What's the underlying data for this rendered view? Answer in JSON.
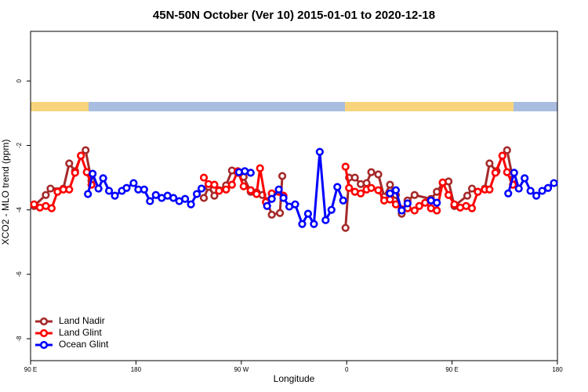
{
  "chart_data": {
    "type": "line",
    "title": "45N-50N October (Ver 10)   2015-01-01 to 2020-12-18",
    "xlabel": "Longitude",
    "ylabel": "XCO2 - MLO trend (ppm)",
    "xlim": [
      90,
      540
    ],
    "ylim": [
      -8.68,
      1.54
    ],
    "xticks": [
      {
        "value": 90,
        "label": "90 E"
      },
      180,
      {
        "value": 270,
        "label": "90 W"
      },
      {
        "value": 360,
        "label": "0"
      },
      {
        "value": 450,
        "label": "90 E"
      },
      {
        "value": 540,
        "label": "180"
      }
    ],
    "yticks": [
      0,
      -2,
      -4,
      -6,
      -8
    ],
    "legend": "lower left",
    "series": [
      {
        "name": "Land Nadir",
        "color": "#a52a2a",
        "x": [
          93,
          103,
          107,
          118,
          123,
          128,
          133,
          137,
          142,
          null,
          238,
          242,
          247,
          251,
          257,
          262,
          267,
          272,
          278,
          283,
          288,
          292,
          296,
          303,
          305,
          null,
          359,
          362,
          367,
          372,
          377,
          381,
          387,
          392,
          397,
          402,
          407,
          412,
          418,
          432,
          437,
          442,
          447,
          452,
          463,
          467,
          472,
          478,
          482,
          488,
          493,
          497,
          502
        ],
        "values": [
          -3.88,
          -3.54,
          -3.34,
          -3.34,
          -2.56,
          -2.8,
          -2.32,
          -2.15,
          -3.1,
          null,
          -3.63,
          -3.29,
          -3.56,
          -3.39,
          -3.24,
          -2.78,
          -2.85,
          -2.98,
          -3.44,
          -3.46,
          -3.54,
          -3.73,
          -4.15,
          -4.1,
          -2.95,
          null,
          -4.56,
          -3.0,
          -3.0,
          -3.2,
          -3.17,
          -2.83,
          -2.9,
          -3.59,
          -3.22,
          -3.54,
          -4.12,
          -3.71,
          -3.54,
          -3.66,
          -3.44,
          -3.17,
          -3.12,
          -3.88,
          -3.56,
          -3.34,
          -3.44,
          -3.34,
          -2.56,
          -2.8,
          -2.32,
          -2.15,
          -3.05
        ]
      },
      {
        "name": "Land Glint",
        "color": "#ff0000",
        "x": [
          93,
          98,
          103,
          108,
          113,
          118,
          123,
          128,
          133,
          138,
          142,
          null,
          238,
          242,
          247,
          251,
          257,
          262,
          267,
          272,
          278,
          283,
          286,
          291,
          296,
          302,
          306,
          null,
          359,
          362,
          367,
          372,
          377,
          381,
          387,
          392,
          397,
          402,
          407,
          412,
          418,
          422,
          427,
          432,
          437,
          442,
          447,
          452,
          457,
          462,
          467,
          472,
          478,
          482,
          487,
          493,
          497,
          502
        ],
        "values": [
          -3.83,
          -3.93,
          -3.88,
          -3.95,
          -3.44,
          -3.37,
          -3.37,
          -2.85,
          -2.32,
          -2.83,
          -3.22,
          null,
          -3.0,
          -3.2,
          -3.22,
          -3.41,
          -3.37,
          -3.22,
          -2.8,
          -3.27,
          -3.39,
          -3.51,
          -2.71,
          -3.76,
          -3.49,
          -3.44,
          -3.56,
          null,
          -2.66,
          -3.32,
          -3.44,
          -3.49,
          -3.37,
          -3.32,
          -3.39,
          -3.71,
          -3.68,
          -3.83,
          -3.98,
          -3.95,
          -4.02,
          -3.88,
          -3.78,
          -3.95,
          -4.02,
          -3.15,
          -3.54,
          -3.83,
          -3.93,
          -3.88,
          -3.95,
          -3.44,
          -3.37,
          -3.37,
          -2.85,
          -2.32,
          -2.83,
          -3.22
        ]
      },
      {
        "name": "Ocean Glint",
        "color": "#0000ff",
        "x": [
          139,
          143,
          148,
          152,
          157,
          162,
          168,
          172,
          178,
          182,
          187,
          192,
          197,
          202,
          207,
          212,
          217,
          222,
          227,
          232,
          236,
          null,
          268,
          273,
          278,
          null,
          292,
          296,
          302,
          306,
          311,
          316,
          322,
          327,
          332,
          337,
          342,
          347,
          352,
          357,
          null,
          397,
          402,
          407,
          412,
          null,
          432,
          437,
          null,
          498,
          503,
          507,
          512,
          517,
          522,
          527,
          532,
          537
        ],
        "values": [
          -3.51,
          -2.88,
          -3.34,
          -3.02,
          -3.41,
          -3.56,
          -3.41,
          -3.32,
          -3.17,
          -3.37,
          -3.37,
          -3.73,
          -3.54,
          -3.63,
          -3.56,
          -3.63,
          -3.73,
          -3.66,
          -3.83,
          -3.51,
          -3.34,
          null,
          -2.83,
          -2.8,
          -2.85,
          null,
          -3.88,
          -3.66,
          -3.37,
          -3.63,
          -3.9,
          -3.83,
          -4.44,
          -4.12,
          -4.44,
          -2.2,
          -4.32,
          -4.0,
          -3.29,
          -3.71,
          null,
          -3.49,
          -3.39,
          -4.02,
          -3.8,
          null,
          -3.71,
          -3.78,
          null,
          -3.49,
          -2.85,
          -3.34,
          -3.02,
          -3.41,
          -3.56,
          -3.41,
          -3.32,
          -3.17
        ]
      }
    ]
  }
}
